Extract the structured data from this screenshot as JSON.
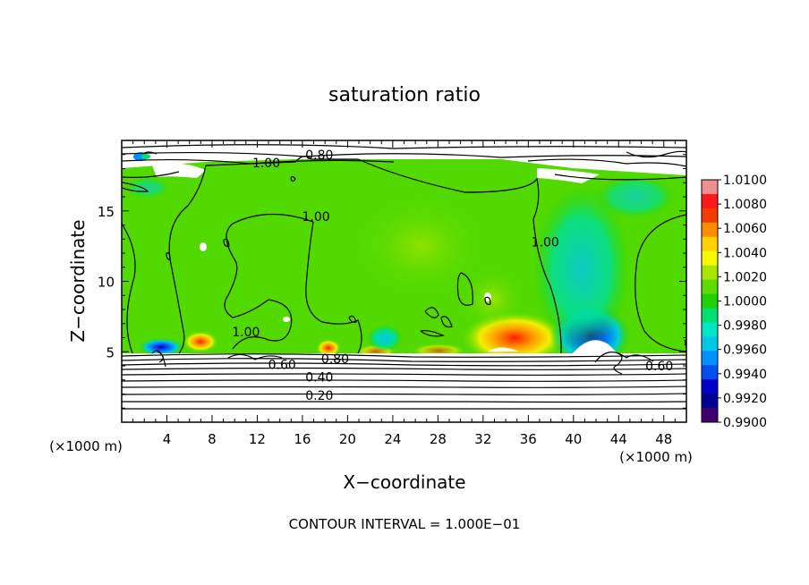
{
  "chart_data": {
    "type": "heatmap",
    "title": "saturation ratio",
    "xlabel": "X−coordinate",
    "ylabel": "Z−coordinate",
    "x_unit_left": "(×1000 m)",
    "x_unit_right": "(×1000 m)",
    "footer": "CONTOUR INTERVAL = 1.000E−01",
    "xlim": [
      0,
      50
    ],
    "ylim": [
      0,
      20
    ],
    "x_ticks": [
      4,
      8,
      12,
      16,
      20,
      24,
      28,
      32,
      36,
      40,
      44,
      48
    ],
    "x_tick_labels": [
      "4",
      "8",
      "12",
      "16",
      "20",
      "24",
      "28",
      "32",
      "36",
      "40",
      "44",
      "48"
    ],
    "y_ticks": [
      5,
      10,
      15
    ],
    "y_tick_labels": [
      "5",
      "10",
      "15"
    ],
    "colorbar": {
      "range": [
        0.99,
        1.01
      ],
      "labels": [
        "1.0100",
        "1.0080",
        "1.0060",
        "1.0040",
        "1.0020",
        "1.0000",
        "0.9980",
        "0.9960",
        "0.9940",
        "0.9920",
        "0.9900"
      ],
      "colors": [
        "#ef8f8f",
        "#ff1a1a",
        "#f53c00",
        "#ff8c00",
        "#ffd200",
        "#f7f700",
        "#a8e600",
        "#5edc00",
        "#20d000",
        "#00e070",
        "#00e6c8",
        "#00c8e6",
        "#0090ff",
        "#0050f0",
        "#0000c8",
        "#000090",
        "#400070"
      ]
    },
    "contour_labels": [
      {
        "text": "0.80",
        "x": 17.5,
        "z": 19.0
      },
      {
        "text": "1.00",
        "x": 12.8,
        "z": 18.4
      },
      {
        "text": "1.00",
        "x": 17.2,
        "z": 14.6
      },
      {
        "text": "1.00",
        "x": 37.5,
        "z": 12.8
      },
      {
        "text": "1.00",
        "x": 11.0,
        "z": 6.4
      },
      {
        "text": "0.60",
        "x": 14.2,
        "z": 4.1
      },
      {
        "text": "0.80",
        "x": 18.9,
        "z": 4.5
      },
      {
        "text": "0.40",
        "x": 17.5,
        "z": 3.2
      },
      {
        "text": "0.20",
        "x": 17.5,
        "z": 1.9
      },
      {
        "text": "0.60",
        "x": 47.6,
        "z": 4.0
      }
    ]
  }
}
